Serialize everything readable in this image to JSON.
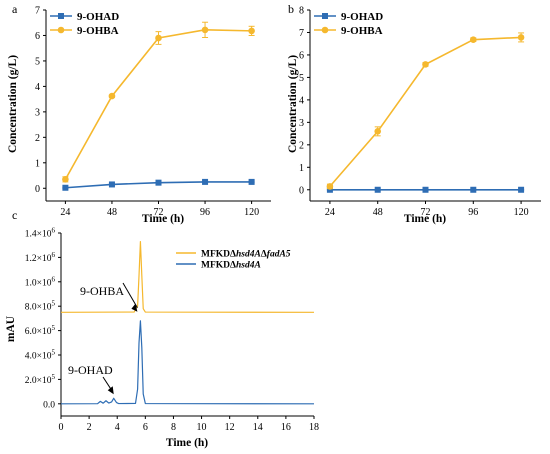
{
  "chart_data": [
    {
      "panel": "a",
      "type": "line",
      "xlabel": "Time (h)",
      "ylabel": "Concentration (g/L)",
      "x": [
        24,
        48,
        72,
        96,
        120
      ],
      "xticks": [
        "24",
        "48",
        "72",
        "96",
        "120"
      ],
      "ylim": [
        -0.5,
        7
      ],
      "yticks": [
        "0",
        "1",
        "2",
        "3",
        "4",
        "5",
        "6",
        "7"
      ],
      "legend_position": "top-left",
      "series": [
        {
          "name": "9-OHAD",
          "color": "#2e6db4",
          "marker": "square",
          "values": [
            0.02,
            0.15,
            0.22,
            0.25,
            0.25
          ],
          "errors": [
            0.02,
            0.03,
            0.03,
            0.03,
            0.03
          ]
        },
        {
          "name": "9-OHBA",
          "color": "#f5b82e",
          "marker": "circle",
          "values": [
            0.35,
            3.62,
            5.9,
            6.22,
            6.18
          ],
          "errors": [
            0.1,
            0.05,
            0.25,
            0.3,
            0.18
          ]
        }
      ]
    },
    {
      "panel": "b",
      "type": "line",
      "xlabel": "Time (h)",
      "ylabel": "Concentration (g/L)",
      "x": [
        24,
        48,
        72,
        96,
        120
      ],
      "xticks": [
        "24",
        "48",
        "72",
        "96",
        "120"
      ],
      "ylim": [
        -0.5,
        8
      ],
      "yticks": [
        "0",
        "1",
        "2",
        "3",
        "4",
        "5",
        "6",
        "7",
        "8"
      ],
      "legend_position": "top-left",
      "series": [
        {
          "name": "9-OHAD",
          "color": "#2e6db4",
          "marker": "square",
          "values": [
            0,
            0,
            0,
            0,
            0
          ],
          "errors": [
            0.02,
            0.02,
            0.02,
            0.02,
            0.02
          ]
        },
        {
          "name": "9-OHBA",
          "color": "#f5b82e",
          "marker": "circle",
          "values": [
            0.15,
            2.6,
            5.58,
            6.68,
            6.78
          ],
          "errors": [
            0.1,
            0.2,
            0.08,
            0.08,
            0.2
          ]
        }
      ]
    },
    {
      "panel": "c",
      "type": "line",
      "xlabel": "Time (h)",
      "ylabel": "mAU",
      "xlim": [
        0,
        18
      ],
      "xticks": [
        "0",
        "2",
        "4",
        "6",
        "8",
        "10",
        "12",
        "14",
        "16",
        "18"
      ],
      "ylim": [
        -100000,
        1400000
      ],
      "legend_position": "top-right",
      "series": [
        {
          "name": "MFKDΔhsd4AΔfadA5",
          "color": "#f5b82e",
          "baseline": 750000,
          "x": [
            0,
            5.2,
            5.45,
            5.55,
            5.65,
            5.75,
            5.85,
            6.0,
            18
          ],
          "values": [
            750000,
            752000,
            800000,
            1050000,
            1330000,
            1050000,
            780000,
            752000,
            750000
          ]
        },
        {
          "name": "MFKDΔhsd4A",
          "color": "#2e6db4",
          "baseline": 0,
          "x": [
            0,
            2.6,
            2.8,
            3.0,
            3.2,
            3.4,
            3.6,
            3.75,
            3.95,
            4.1,
            5.3,
            5.45,
            5.55,
            5.65,
            5.75,
            5.85,
            6.0,
            18
          ],
          "values": [
            0,
            1000,
            20000,
            5000,
            25000,
            6000,
            15000,
            45000,
            10000,
            2000,
            3000,
            120000,
            500000,
            680000,
            460000,
            80000,
            2000,
            0
          ]
        }
      ],
      "annotations": [
        {
          "text": "9-OHBA",
          "x": 5.65,
          "y": 1050000
        },
        {
          "text": "9-OHAD",
          "x": 3.75,
          "y": 45000
        }
      ]
    }
  ],
  "panel_c": {
    "ytick_labels": [
      {
        "value": 0,
        "mant": "0.0",
        "exp": ""
      },
      {
        "value": 200000,
        "mant": "2.0×10",
        "exp": "5"
      },
      {
        "value": 400000,
        "mant": "4.0×10",
        "exp": "5"
      },
      {
        "value": 600000,
        "mant": "6.0×10",
        "exp": "5"
      },
      {
        "value": 800000,
        "mant": "8.0×10",
        "exp": "5"
      },
      {
        "value": 1000000,
        "mant": "1.0×10",
        "exp": "6"
      },
      {
        "value": 1200000,
        "mant": "1.2×10",
        "exp": "6"
      },
      {
        "value": 1400000,
        "mant": "1.4×10",
        "exp": "6"
      }
    ],
    "legend": [
      {
        "prefix": "MFKDΔ",
        "it1": "hsd4A",
        "mid": "Δ",
        "it2": "fadA5"
      },
      {
        "prefix": "MFKDΔ",
        "it1": "hsd4A",
        "mid": "",
        "it2": ""
      }
    ]
  }
}
